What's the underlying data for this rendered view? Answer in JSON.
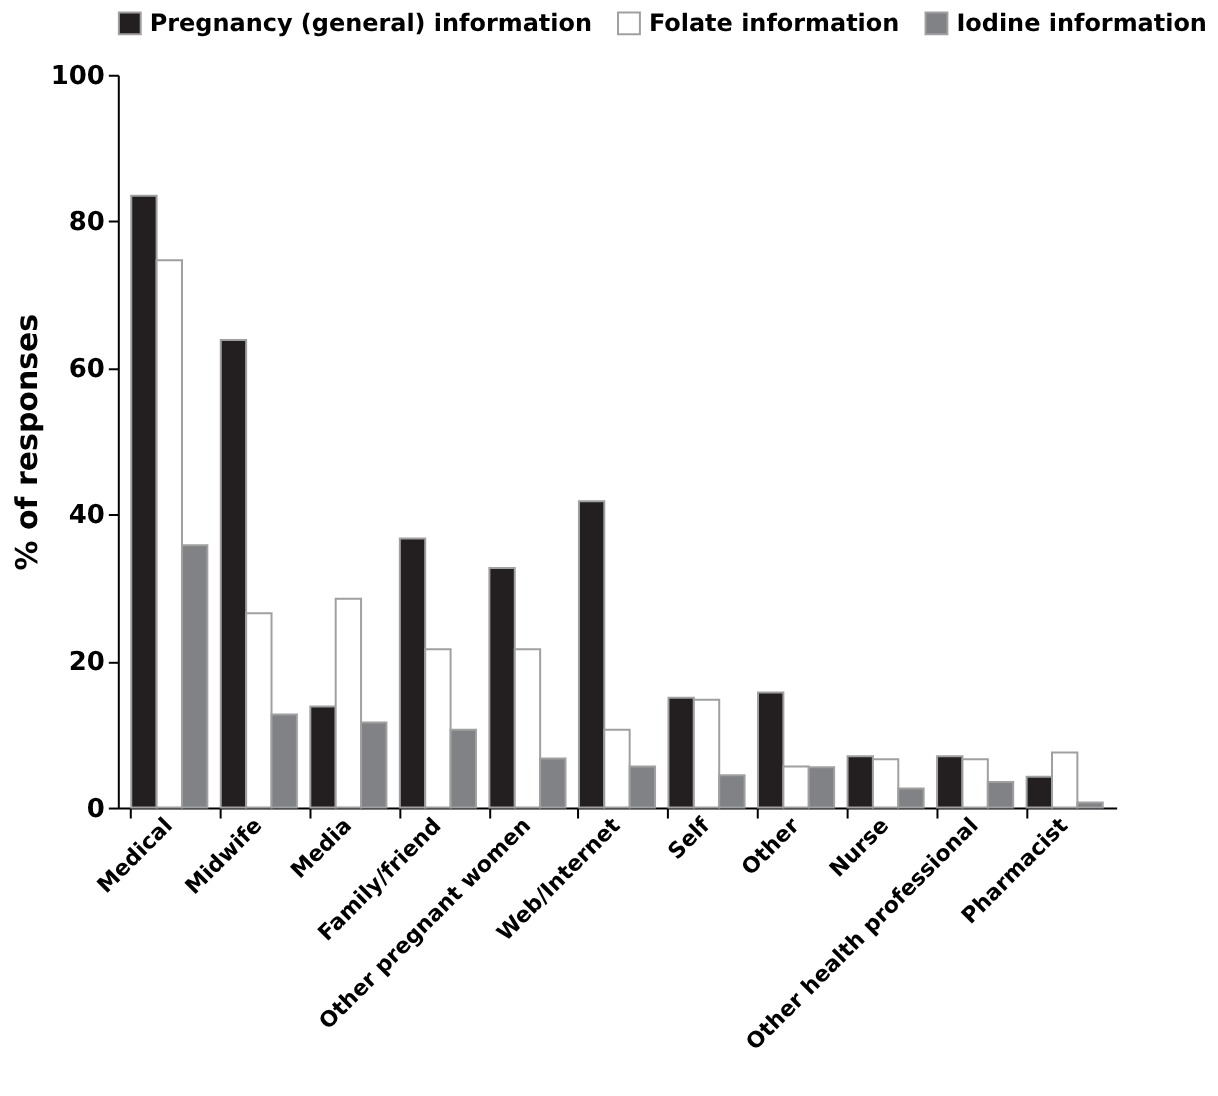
{
  "chart_data": {
    "type": "bar",
    "ylabel": "% of responses",
    "legend": "top",
    "categories": [
      "Medical",
      "Midwife",
      "Media",
      "Family/friend",
      "Other pregnant women",
      "Web/Internet",
      "Self",
      "Other",
      "Nurse",
      "Other health professional",
      "Pharmacist"
    ],
    "series": [
      {
        "name": "Pregnancy (general) information",
        "color": "#231f20",
        "values": [
          83.5,
          63.8,
          13.8,
          36.7,
          32.7,
          41.8,
          15,
          15.7,
          7,
          7,
          4.2
        ]
      },
      {
        "name": "Folate information",
        "color": "#ffffff",
        "values": [
          74.7,
          26.5,
          28.5,
          21.6,
          21.6,
          10.6,
          14.7,
          5.6,
          6.6,
          6.6,
          7.5
        ]
      },
      {
        "name": "Iodine information",
        "color": "#808285",
        "values": [
          35.8,
          12.7,
          11.6,
          10.6,
          6.7,
          5.6,
          4.4,
          5.5,
          2.6,
          3.5,
          0.7
        ]
      }
    ],
    "ylim": [
      0,
      100
    ],
    "yticks": [
      0,
      20,
      40,
      60,
      80,
      100
    ],
    "grid": false
  }
}
